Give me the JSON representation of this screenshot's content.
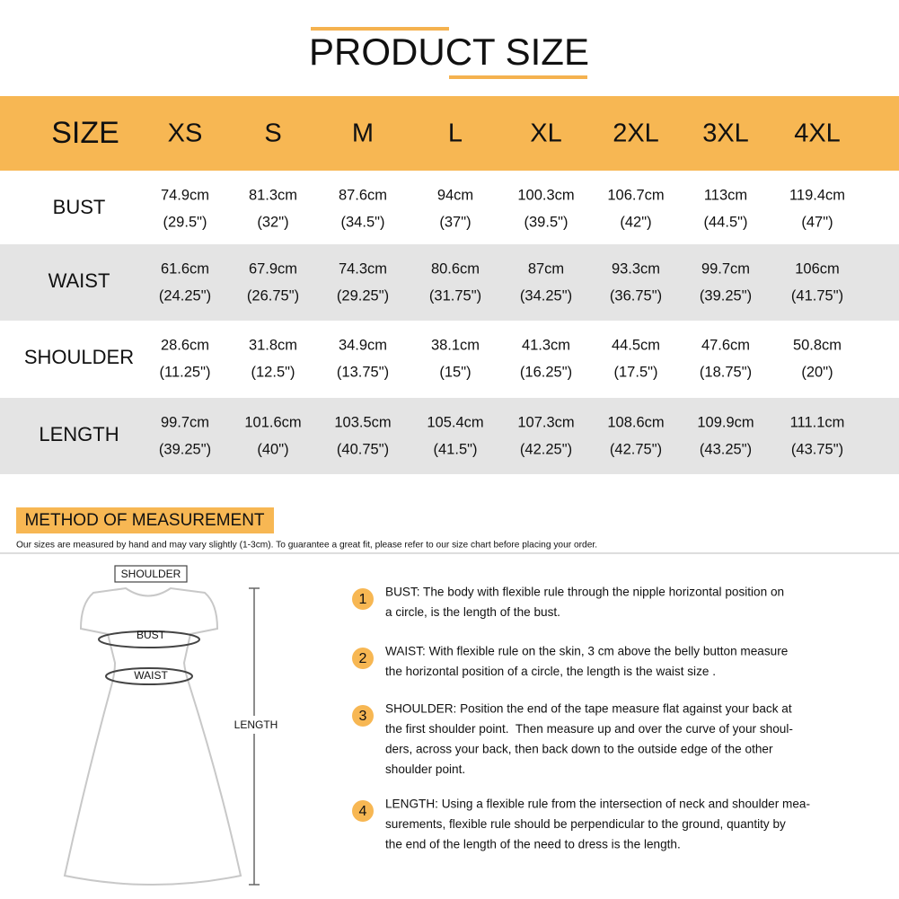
{
  "header": {
    "title": "PRODUCT SIZE"
  },
  "table": {
    "columns": [
      "SIZE",
      "XS",
      "S",
      "M",
      "L",
      "XL",
      "2XL",
      "3XL",
      "4XL"
    ],
    "rows": [
      {
        "label": "BUST",
        "cells": [
          [
            "74.9cm",
            "(29.5\")"
          ],
          [
            "81.3cm",
            "(32\")"
          ],
          [
            "87.6cm",
            "(34.5\")"
          ],
          [
            "94cm",
            "(37\")"
          ],
          [
            "100.3cm",
            "(39.5\")"
          ],
          [
            "106.7cm",
            "(42\")"
          ],
          [
            "113cm",
            "(44.5\")"
          ],
          [
            "119.4cm",
            "(47\")"
          ]
        ]
      },
      {
        "label": "WAIST",
        "cells": [
          [
            "61.6cm",
            "(24.25\")"
          ],
          [
            "67.9cm",
            "(26.75\")"
          ],
          [
            "74.3cm",
            "(29.25\")"
          ],
          [
            "80.6cm",
            "(31.75\")"
          ],
          [
            "87cm",
            "(34.25\")"
          ],
          [
            "93.3cm",
            "(36.75\")"
          ],
          [
            "99.7cm",
            "(39.25\")"
          ],
          [
            "106cm",
            "(41.75\")"
          ]
        ]
      },
      {
        "label": "SHOULDER",
        "cells": [
          [
            "28.6cm",
            "(11.25\")"
          ],
          [
            "31.8cm",
            "(12.5\")"
          ],
          [
            "34.9cm",
            "(13.75\")"
          ],
          [
            "38.1cm",
            "(15\")"
          ],
          [
            "41.3cm",
            "(16.25\")"
          ],
          [
            "44.5cm",
            "(17.5\")"
          ],
          [
            "47.6cm",
            "(18.75\")"
          ],
          [
            "50.8cm",
            "(20\")"
          ]
        ]
      },
      {
        "label": "LENGTH",
        "cells": [
          [
            "99.7cm",
            "(39.25\")"
          ],
          [
            "101.6cm",
            "(40\")"
          ],
          [
            "103.5cm",
            "(40.75\")"
          ],
          [
            "105.4cm",
            "(41.5\")"
          ],
          [
            "107.3cm",
            "(42.25\")"
          ],
          [
            "108.6cm",
            "(42.75\")"
          ],
          [
            "109.9cm",
            "(43.25\")"
          ],
          [
            "111.1cm",
            "(43.75\")"
          ]
        ]
      }
    ]
  },
  "method": {
    "title": "METHOD OF MEASUREMENT",
    "note": "Our sizes are measured by hand and may vary slightly (1-3cm). To guarantee a great fit, please refer to our size chart before placing your order.",
    "diagram": {
      "shoulder": "SHOULDER",
      "bust": "BUST",
      "waist": "WAIST",
      "length": "LENGTH"
    },
    "steps": [
      {
        "number": "1",
        "lines": [
          "BUST: The body with flexible rule through the nipple horizontal position on",
          "a circle, is the length of the bust."
        ]
      },
      {
        "number": "2",
        "lines": [
          "WAIST: With flexible rule on the skin, 3 cm above the belly button measure",
          "the horizontal position of a circle, the length is the waist size ."
        ]
      },
      {
        "number": "3",
        "lines": [
          "SHOULDER: Position the end of the tape measure flat against your back at",
          "the first shoulder point.  Then measure up and over the curve of your shoul-",
          "ders, across your back, then back down to the outside edge of the other",
          "shoulder point."
        ]
      },
      {
        "number": "4",
        "lines": [
          "LENGTH: Using a flexible rule from the intersection of neck and shoulder mea-",
          "surements, flexible rule should be perpendicular to the ground, quantity by",
          "the end of the length of the need to dress is the length."
        ]
      }
    ]
  }
}
